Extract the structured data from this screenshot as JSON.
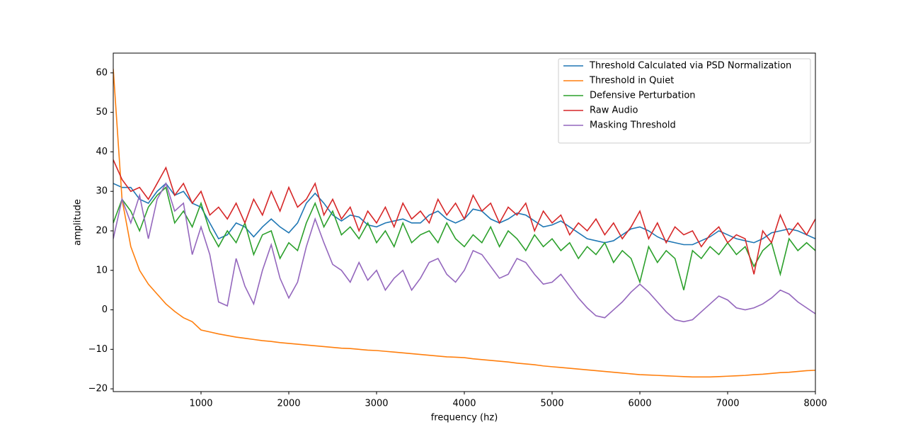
{
  "chart_data": {
    "type": "line",
    "xlabel": "frequency (hz)",
    "ylabel": "amplitude",
    "x": [
      0,
      100,
      200,
      300,
      400,
      500,
      600,
      700,
      800,
      900,
      1000,
      1100,
      1200,
      1300,
      1400,
      1500,
      1600,
      1700,
      1800,
      1900,
      2000,
      2100,
      2200,
      2300,
      2400,
      2500,
      2600,
      2700,
      2800,
      2900,
      3000,
      3100,
      3200,
      3300,
      3400,
      3500,
      3600,
      3700,
      3800,
      3900,
      4000,
      4100,
      4200,
      4300,
      4400,
      4500,
      4600,
      4700,
      4800,
      4900,
      5000,
      5100,
      5200,
      5300,
      5400,
      5500,
      5600,
      5700,
      5800,
      5900,
      6000,
      6100,
      6200,
      6300,
      6400,
      6500,
      6600,
      6700,
      6800,
      6900,
      7000,
      7100,
      7200,
      7300,
      7400,
      7500,
      7600,
      7700,
      7800,
      7900,
      8000
    ],
    "series": [
      {
        "name": "Threshold Calculated via PSD Normalization",
        "color": "#1f77b4",
        "values": [
          32,
          31,
          31,
          28,
          27,
          30,
          32,
          29,
          30,
          27,
          26,
          22,
          18,
          19,
          22,
          21,
          18.5,
          21,
          23,
          21,
          19.5,
          22,
          27,
          29.5,
          27,
          24,
          22.5,
          24,
          23.5,
          21.5,
          21,
          22,
          22.5,
          23,
          22,
          22,
          24,
          25,
          23,
          22,
          23,
          25.5,
          25,
          23,
          22,
          23,
          24.5,
          24,
          22.5,
          21,
          21.5,
          22.5,
          21,
          19.5,
          18,
          17.5,
          17,
          17.5,
          19,
          20.5,
          21,
          20,
          18.5,
          17.5,
          17,
          16.5,
          16.5,
          17.5,
          18.5,
          20,
          19,
          18,
          17.5,
          17,
          18,
          19.5,
          20,
          20.5,
          20,
          19,
          18
        ]
      },
      {
        "name": "Threshold in Quiet",
        "color": "#ff7f0e",
        "values": [
          61,
          28,
          16,
          10,
          6.5,
          4,
          1.5,
          -0.4,
          -2,
          -3,
          -5.1,
          -5.6,
          -6.1,
          -6.5,
          -6.9,
          -7.2,
          -7.5,
          -7.8,
          -8,
          -8.3,
          -8.5,
          -8.7,
          -8.9,
          -9.1,
          -9.3,
          -9.5,
          -9.7,
          -9.8,
          -10,
          -10.2,
          -10.3,
          -10.5,
          -10.7,
          -10.9,
          -11.1,
          -11.3,
          -11.5,
          -11.7,
          -11.9,
          -12,
          -12.1,
          -12.4,
          -12.6,
          -12.8,
          -13,
          -13.2,
          -13.5,
          -13.7,
          -13.9,
          -14.2,
          -14.4,
          -14.6,
          -14.8,
          -15,
          -15.2,
          -15.4,
          -15.6,
          -15.8,
          -16,
          -16.2,
          -16.4,
          -16.5,
          -16.6,
          -16.7,
          -16.8,
          -16.9,
          -17,
          -17,
          -17,
          -16.9,
          -16.8,
          -16.7,
          -16.6,
          -16.4,
          -16.3,
          -16.1,
          -15.9,
          -15.8,
          -15.6,
          -15.4,
          -15.3
        ]
      },
      {
        "name": "Defensive Perturbation",
        "color": "#2ca02c",
        "values": [
          22,
          28,
          25,
          20,
          26,
          29,
          31,
          22,
          25,
          21,
          27,
          20,
          16,
          20,
          17,
          22,
          14,
          19,
          20,
          13,
          17,
          15,
          22,
          27,
          21,
          25,
          19,
          21,
          18,
          22,
          17,
          20,
          16,
          22,
          17,
          19,
          20,
          17,
          22,
          18,
          16,
          19,
          17,
          21,
          16,
          20,
          18,
          15,
          19,
          16,
          18,
          15,
          17,
          13,
          16,
          14,
          17,
          12,
          15,
          13,
          7,
          16,
          12,
          15,
          13,
          5,
          15,
          13,
          16,
          14,
          17,
          14,
          16,
          11,
          15,
          17,
          9,
          18,
          15,
          17,
          15
        ]
      },
      {
        "name": "Raw Audio",
        "color": "#d62728",
        "values": [
          38,
          33,
          30,
          31,
          28,
          32,
          36,
          29,
          32,
          27,
          30,
          24,
          26,
          23,
          27,
          22,
          28,
          24,
          30,
          25,
          31,
          26,
          28,
          32,
          24,
          28,
          23,
          26,
          20,
          25,
          22,
          26,
          21,
          27,
          23,
          25,
          22,
          28,
          24,
          27,
          23,
          29,
          25,
          27,
          22,
          26,
          24,
          27,
          20,
          25,
          22,
          24,
          19,
          22,
          20,
          23,
          19,
          22,
          18,
          21,
          25,
          18,
          22,
          17,
          21,
          19,
          20,
          16,
          19,
          21,
          17,
          19,
          18,
          9,
          20,
          17,
          24,
          19,
          22,
          19,
          23
        ]
      },
      {
        "name": "Masking Threshold",
        "color": "#9467bd",
        "values": [
          18,
          28,
          22,
          29,
          18,
          28,
          32,
          25,
          27,
          14,
          21,
          14,
          2,
          1,
          13,
          6,
          1.5,
          10,
          16.5,
          8,
          3,
          7,
          16,
          23,
          17,
          11.5,
          10,
          7,
          12,
          7.5,
          10,
          5,
          8,
          10,
          5,
          8,
          12,
          13,
          9,
          7,
          10,
          15,
          14,
          11,
          8,
          9,
          13,
          12,
          9,
          6.5,
          7,
          9,
          6,
          3,
          0.5,
          -1.5,
          -2,
          0,
          2,
          4.5,
          6.5,
          4.5,
          2,
          -0.5,
          -2.5,
          -3,
          -2.5,
          -0.5,
          1.5,
          3.5,
          2.5,
          0.5,
          0,
          0.5,
          1.5,
          3,
          5,
          4,
          2,
          0.5,
          -1
        ]
      }
    ],
    "xlim": [
      0,
      8000
    ],
    "xticks": [
      1000,
      2000,
      3000,
      4000,
      5000,
      6000,
      7000,
      8000
    ],
    "ylim": [
      -20.7,
      65
    ],
    "yticks": [
      {
        "value": -20,
        "label": "−20"
      },
      {
        "value": -10,
        "label": "−10"
      },
      0,
      10,
      20,
      30,
      40,
      50,
      60
    ],
    "legend": "upper right",
    "grid": false
  }
}
